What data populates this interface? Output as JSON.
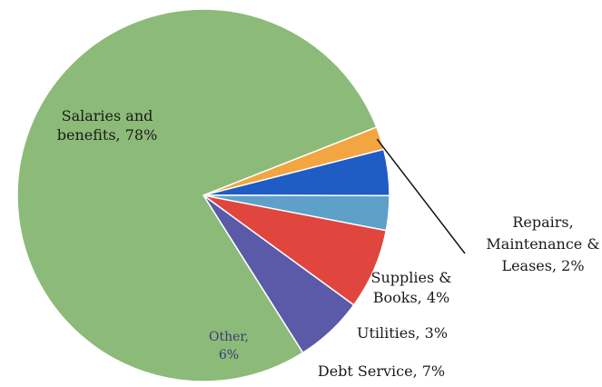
{
  "chart_data": {
    "type": "pie",
    "title": "",
    "slices": [
      {
        "name": "Salaries and benefits",
        "value": 78,
        "color": "#8cba78",
        "label_lines": [
          "Salaries and",
          "benefits, 78%"
        ]
      },
      {
        "name": "Repairs, Maintenance & Leases",
        "value": 2,
        "color": "#f2a540",
        "label_lines": [
          "Repairs,",
          "Maintenance &",
          "Leases, 2%"
        ]
      },
      {
        "name": "Supplies & Books",
        "value": 4,
        "color": "#1f5cc4",
        "label_lines": [
          "Supplies &",
          "Books, 4%"
        ]
      },
      {
        "name": "Utilities",
        "value": 3,
        "color": "#5ea0c8",
        "label_lines": [
          "Utilities, 3%"
        ]
      },
      {
        "name": "Debt Service",
        "value": 7,
        "color": "#e0463e",
        "label_lines": [
          "Debt Service, 7%"
        ]
      },
      {
        "name": "Other",
        "value": 6,
        "color": "#5a5aa8",
        "label_lines": [
          "Other,",
          "6%"
        ]
      }
    ]
  }
}
